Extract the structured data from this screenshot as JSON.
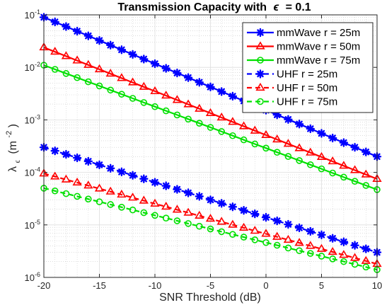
{
  "chart_data": {
    "type": "line",
    "title_prefix": "Transmission Capacity with",
    "title_symbol": "ϵ",
    "title_suffix": "= 0.1",
    "xlabel": "SNR Threshold (dB)",
    "ylabel_main": "λ",
    "ylabel_sub": "ϵ",
    "ylabel_unit_open": "(m",
    "ylabel_unit_exp": "-2",
    "ylabel_unit_close": ")",
    "y_scale": "log",
    "xlim": [
      -20,
      10
    ],
    "ylim": [
      1e-06,
      0.1
    ],
    "x_ticks": [
      -20,
      -15,
      -10,
      -5,
      0,
      5,
      10
    ],
    "y_ticks": [
      1e-06,
      1e-05,
      0.0001,
      0.001,
      0.01,
      0.1
    ],
    "y_tick_labels": [
      {
        "base": "10",
        "exp": "-6"
      },
      {
        "base": "10",
        "exp": "-5"
      },
      {
        "base": "10",
        "exp": "-4"
      },
      {
        "base": "10",
        "exp": "-3"
      },
      {
        "base": "10",
        "exp": "-2"
      },
      {
        "base": "10",
        "exp": "-1"
      }
    ],
    "grid": true,
    "minor_grid": true,
    "legend_placement": "top-right",
    "x_start": -20,
    "x_step": 1,
    "x_count": 31,
    "series": [
      {
        "name": "mmWave r = 25m",
        "color": "#0000ff",
        "line": "solid",
        "marker": "asterisk",
        "y_start": 0.09,
        "y_end": 0.0002
      },
      {
        "name": "mmWave r = 50m",
        "color": "#ff0000",
        "line": "solid",
        "marker": "triangle",
        "y_start": 0.024,
        "y_end": 7.5e-05
      },
      {
        "name": "mmWave r = 75m",
        "color": "#00e000",
        "line": "solid",
        "marker": "circle",
        "y_start": 0.011,
        "y_end": 4.7e-05
      },
      {
        "name": "UHF r = 25m",
        "color": "#0000ff",
        "line": "dashed",
        "marker": "asterisk",
        "y_start": 0.0003,
        "y_end": 3e-06
      },
      {
        "name": "UHF r = 50m",
        "color": "#ff0000",
        "line": "dashed",
        "marker": "triangle",
        "y_start": 9.5e-05,
        "y_end": 1.8e-06
      },
      {
        "name": "UHF r = 75m",
        "color": "#00e000",
        "line": "dashed",
        "marker": "circle",
        "y_start": 5e-05,
        "y_end": 1.4e-06
      }
    ]
  }
}
